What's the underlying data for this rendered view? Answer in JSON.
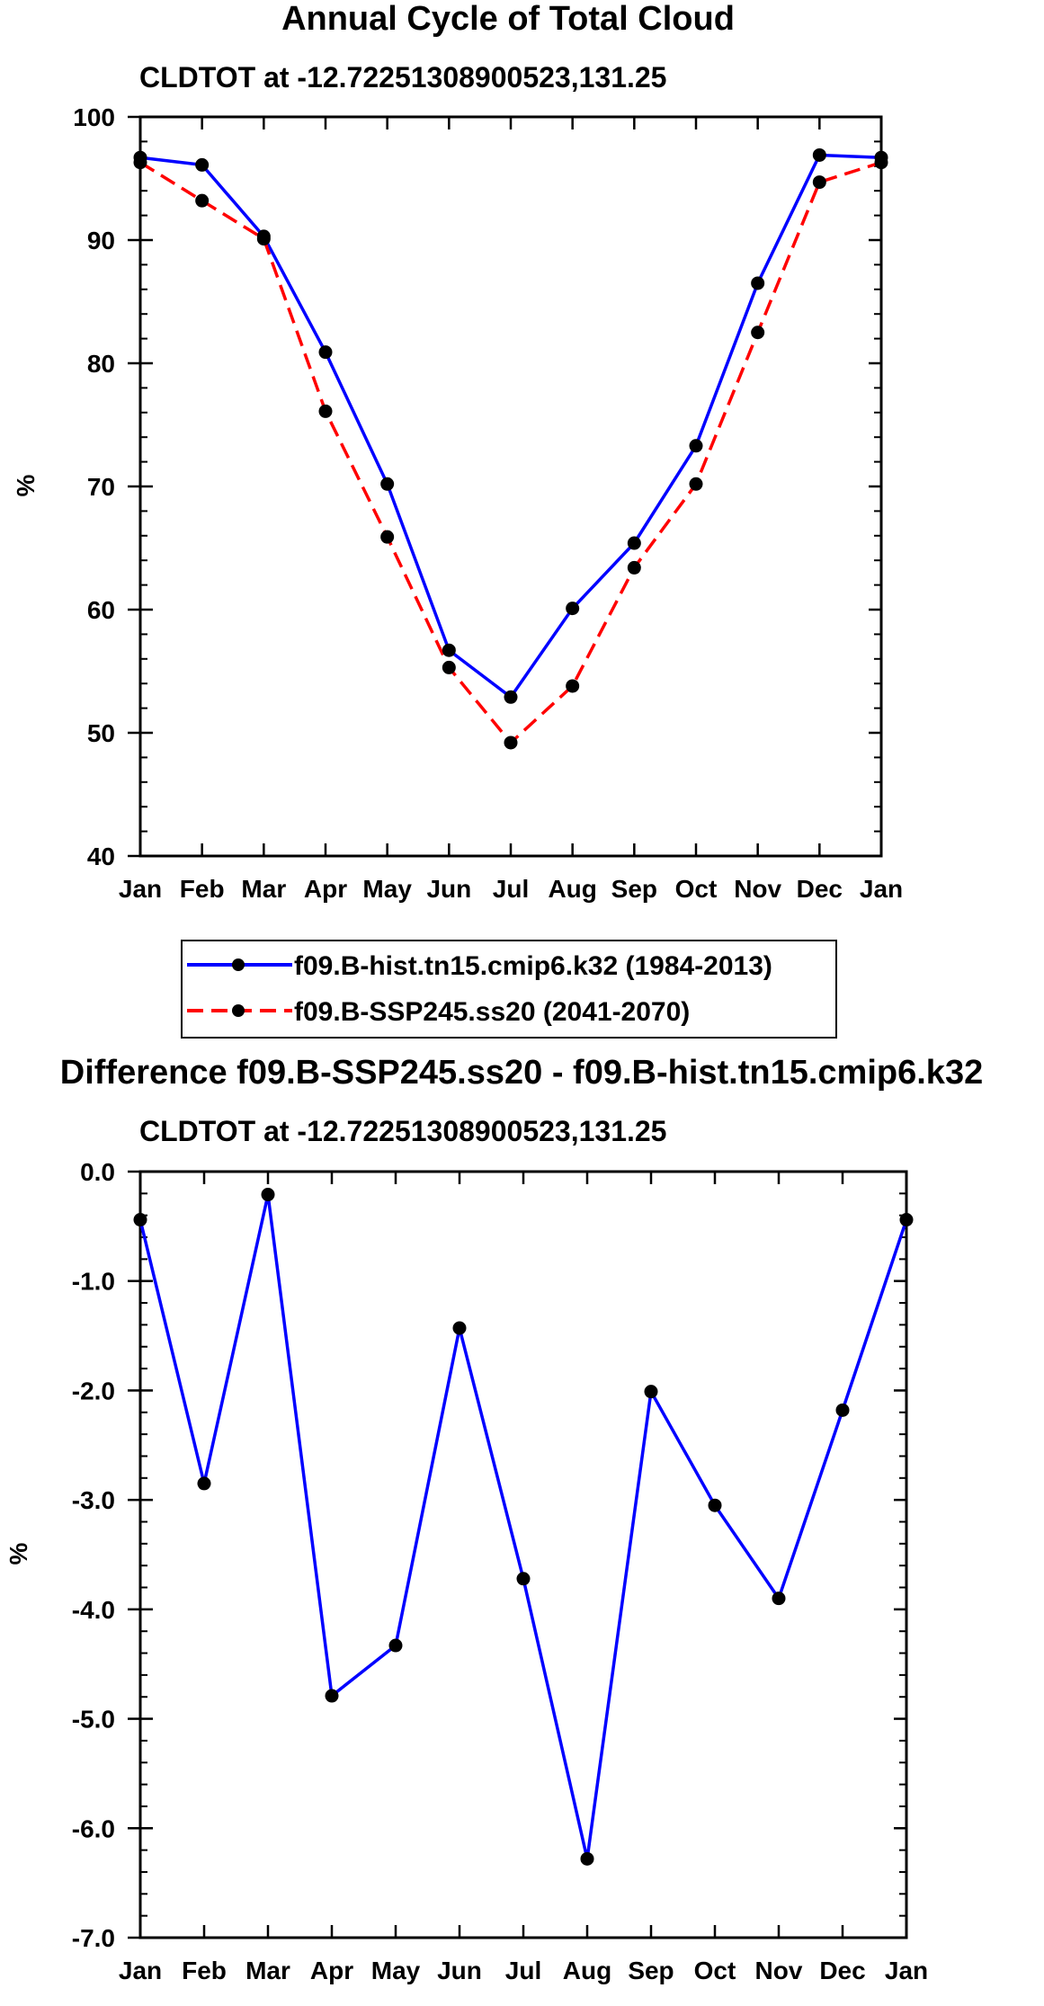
{
  "chart_data": [
    {
      "type": "line",
      "title": "Annual Cycle of Total Cloud",
      "subtitle": "CLDTOT at -12.72251308900523,131.25",
      "xlabel": "",
      "ylabel": "%",
      "ylim": [
        40,
        100
      ],
      "yticks": [
        "40",
        "50",
        "60",
        "70",
        "80",
        "90",
        "100"
      ],
      "categories": [
        "Jan",
        "Feb",
        "Mar",
        "Apr",
        "May",
        "Jun",
        "Jul",
        "Aug",
        "Sep",
        "Oct",
        "Nov",
        "Dec",
        "Jan"
      ],
      "series": [
        {
          "name": "f09.B-hist.tn15.cmip6.k32 (1984-2013)",
          "color": "#0000ff",
          "dash": "solid",
          "values": [
            96.7,
            96.1,
            90.3,
            80.9,
            70.2,
            56.7,
            52.9,
            60.1,
            65.4,
            73.3,
            86.5,
            96.9,
            96.7
          ]
        },
        {
          "name": "f09.B-SSP245.ss20 (2041-2070)",
          "color": "#ff0000",
          "dash": "dashed",
          "values": [
            96.3,
            93.2,
            90.1,
            76.1,
            65.9,
            55.3,
            49.2,
            53.8,
            63.4,
            70.2,
            82.5,
            94.7,
            96.3
          ]
        }
      ]
    },
    {
      "type": "line",
      "title": "Difference f09.B-SSP245.ss20 - f09.B-hist.tn15.cmip6.k32",
      "subtitle": "CLDTOT at -12.72251308900523,131.25",
      "xlabel": "",
      "ylabel": "%",
      "ylim": [
        -7,
        0
      ],
      "yticks": [
        "-7.0",
        "-6.0",
        "-5.0",
        "-4.0",
        "-3.0",
        "-2.0",
        "-1.0",
        "0.0"
      ],
      "categories": [
        "Jan",
        "Feb",
        "Mar",
        "Apr",
        "May",
        "Jun",
        "Jul",
        "Aug",
        "Sep",
        "Oct",
        "Nov",
        "Dec",
        "Jan"
      ],
      "series": [
        {
          "name": "difference",
          "color": "#0000ff",
          "dash": "solid",
          "values": [
            -0.44,
            -2.85,
            -0.21,
            -4.79,
            -4.33,
            -1.43,
            -3.72,
            -6.28,
            -2.01,
            -3.05,
            -3.9,
            -2.18,
            -0.44
          ]
        }
      ]
    }
  ]
}
